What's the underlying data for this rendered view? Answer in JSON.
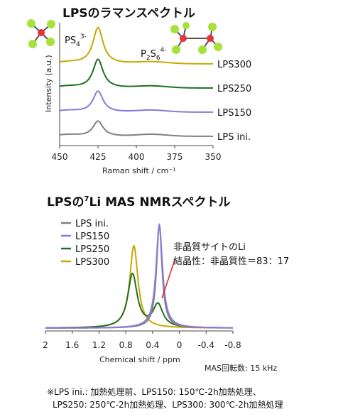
{
  "chart_data": [
    {
      "type": "line",
      "title": "LPSのラマンスペクトル",
      "xlabel": "Raman shift / cm⁻¹",
      "ylabel": "Intensity (a.u.)",
      "xlim": [
        450,
        350
      ],
      "x_ticks": [
        "450",
        "425",
        "400",
        "375",
        "350"
      ],
      "grid": false,
      "legend": "labels at right end of each trace",
      "series": [
        {
          "name": "LPS ini.",
          "color": "#808080",
          "offset": 0.0,
          "peak_height": 0.4
        },
        {
          "name": "LPS150",
          "color": "#8b78d8",
          "offset": 1.0,
          "peak_height": 0.55
        },
        {
          "name": "LPS250",
          "color": "#1f6f1f",
          "offset": 2.0,
          "peak_height": 0.75
        },
        {
          "name": "LPS300",
          "color": "#c8a800",
          "offset": 3.0,
          "peak_height": 0.95
        }
      ],
      "peaks": [
        {
          "x": 425,
          "label_main": "PS",
          "label_sub": "4",
          "label_sup": "3-"
        },
        {
          "x": 385,
          "label_main": "P",
          "label_sub": "2",
          "label_mid": "S",
          "label_sub2": "6",
          "label_sup": "4-"
        }
      ]
    },
    {
      "type": "line",
      "title_main": "LPSの",
      "title_sup": "7",
      "title_rest": "Li MAS NMRスペクトル",
      "xlabel": "Chemical shift / ppm",
      "xlim": [
        2,
        -0.8
      ],
      "x_ticks": [
        "2",
        "1.6",
        "1.2",
        "0.8",
        "0.4",
        "0",
        "-0.4",
        "-0.8"
      ],
      "legend": "top-left",
      "series": [
        {
          "name": "LPS ini.",
          "color": "#808080",
          "center": 0.3,
          "height": 1.0
        },
        {
          "name": "LPS150",
          "color": "#8b78d8",
          "center": 0.3,
          "height": 1.0
        },
        {
          "name": "LPS250",
          "color": "#1f6f1f",
          "center": 0.7,
          "height": 0.52
        },
        {
          "name": "LPS300",
          "color": "#c8a800",
          "center": 0.68,
          "height": 0.8
        }
      ],
      "annotation": {
        "line1": "非晶質サイトのLi",
        "line2": "結晶性：非晶質性＝83：17",
        "ratio_crystalline": 83,
        "ratio_amorphous": 17
      },
      "mas_text": "MAS回転数: 15 kHz"
    }
  ],
  "footnote": {
    "line1": "※LPS ini.: 加熱処理前、LPS150: 150℃-2h加熱処理、",
    "line2": "LPS250: 250℃-2h加熱処理、LPS300: 300℃-2h加熱処理"
  }
}
